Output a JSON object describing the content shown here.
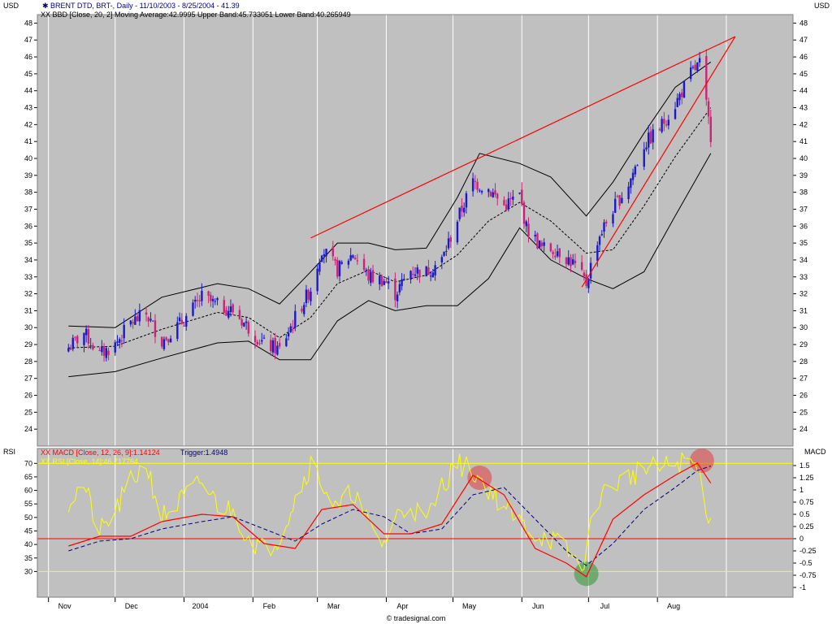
{
  "header": {
    "left_unit": "USD",
    "right_unit": "USD",
    "series_label": "BRENT DTD, BRT-, Daily - 11/10/2003 - 8/25/2004 - 41.39",
    "bb_label": "XX BBD [Close, 20, 2] Moving Average:42.9995 Upper Band:45.733051 Lower Band:40.265949"
  },
  "lower_header": {
    "left_unit": "RSI",
    "right_unit": "MACD",
    "macd_label": "XX MACD [Close, 12, 26, 9]:1.14124",
    "trigger_label": "Trigger:1.4948",
    "rsi_label": "XX RSI [Close, 14]:46.717764"
  },
  "footer": {
    "watermark": "© tradesignal.com"
  },
  "colors": {
    "panel_bg": "#c0c0c0",
    "candle_up": "#1a1acc",
    "candle_down": "#cc2277",
    "trendline": "#ff0000",
    "macd": "#ff0000",
    "trigger": "#00007a",
    "rsi": "#ffff00",
    "band": "#000000"
  },
  "chart_data": [
    {
      "type": "candlestick",
      "title": "BRENT DTD, BRT-, Daily - 11/10/2003 - 8/25/2004 - 41.39",
      "ylabel": "USD",
      "ylim": [
        23,
        48.5
      ],
      "yticks": [
        24,
        25,
        26,
        27,
        28,
        29,
        30,
        31,
        32,
        33,
        34,
        35,
        36,
        37,
        38,
        39,
        40,
        41,
        42,
        43,
        44,
        45,
        46,
        47,
        48
      ],
      "x_labels": [
        "Nov",
        "Dec",
        "2004",
        "Feb",
        "Mar",
        "Apr",
        "May",
        "Jun",
        "Jul",
        "Aug"
      ],
      "x_domain": [
        "2003-10-27",
        "2004-10-01"
      ],
      "month_starts": [
        "2003-11-01",
        "2003-12-01",
        "2004-01-01",
        "2004-02-01",
        "2004-03-01",
        "2004-04-01",
        "2004-05-01",
        "2004-06-01",
        "2004-07-01",
        "2004-08-01",
        "2004-09-01"
      ],
      "close_path": [
        [
          "2003-11-10",
          28.8
        ],
        [
          "2003-11-17",
          29.7
        ],
        [
          "2003-11-24",
          28.4
        ],
        [
          "2003-12-01",
          29.0
        ],
        [
          "2003-12-08",
          30.3
        ],
        [
          "2003-12-15",
          30.8
        ],
        [
          "2003-12-22",
          29.2
        ],
        [
          "2004-01-02",
          30.6
        ],
        [
          "2004-01-09",
          31.8
        ],
        [
          "2004-01-16",
          31.3
        ],
        [
          "2004-01-23",
          31.0
        ],
        [
          "2004-01-30",
          30.0
        ],
        [
          "2004-02-06",
          29.0
        ],
        [
          "2004-02-13",
          28.7
        ],
        [
          "2004-02-20",
          30.6
        ],
        [
          "2004-02-27",
          32.3
        ],
        [
          "2004-03-03",
          34.7
        ],
        [
          "2004-03-10",
          33.4
        ],
        [
          "2004-03-17",
          34.4
        ],
        [
          "2004-03-24",
          33.0
        ],
        [
          "2004-03-31",
          32.8
        ],
        [
          "2004-04-05",
          32.0
        ],
        [
          "2004-04-12",
          33.4
        ],
        [
          "2004-04-19",
          33.3
        ],
        [
          "2004-04-26",
          34.0
        ],
        [
          "2004-05-03",
          36.4
        ],
        [
          "2004-05-10",
          38.6
        ],
        [
          "2004-05-17",
          38.2
        ],
        [
          "2004-05-24",
          37.2
        ],
        [
          "2004-05-31",
          37.8
        ],
        [
          "2004-06-03",
          35.9
        ],
        [
          "2004-06-10",
          34.7
        ],
        [
          "2004-06-17",
          34.6
        ],
        [
          "2004-06-24",
          33.8
        ],
        [
          "2004-06-30",
          32.6
        ],
        [
          "2004-07-05",
          35.2
        ],
        [
          "2004-07-12",
          37.0
        ],
        [
          "2004-07-19",
          38.5
        ],
        [
          "2004-07-26",
          40.8
        ],
        [
          "2004-08-02",
          41.8
        ],
        [
          "2004-08-09",
          43.2
        ],
        [
          "2004-08-16",
          45.0
        ],
        [
          "2004-08-20",
          45.6
        ],
        [
          "2004-08-25",
          41.4
        ]
      ],
      "moving_average": [
        [
          "2003-11-10",
          28.8
        ],
        [
          "2003-12-01",
          28.9
        ],
        [
          "2003-12-22",
          29.9
        ],
        [
          "2004-01-16",
          30.9
        ],
        [
          "2004-01-30",
          30.6
        ],
        [
          "2004-02-13",
          29.4
        ],
        [
          "2004-02-27",
          30.6
        ],
        [
          "2004-03-10",
          32.6
        ],
        [
          "2004-03-24",
          33.4
        ],
        [
          "2004-04-05",
          32.7
        ],
        [
          "2004-04-19",
          33.1
        ],
        [
          "2004-05-03",
          34.3
        ],
        [
          "2004-05-17",
          36.3
        ],
        [
          "2004-05-31",
          37.4
        ],
        [
          "2004-06-14",
          36.3
        ],
        [
          "2004-06-30",
          34.4
        ],
        [
          "2004-07-12",
          34.6
        ],
        [
          "2004-07-26",
          37.2
        ],
        [
          "2004-08-09",
          40.1
        ],
        [
          "2004-08-25",
          43.0
        ]
      ],
      "upper_band": [
        [
          "2003-11-10",
          30.1
        ],
        [
          "2003-12-01",
          30.0
        ],
        [
          "2003-12-22",
          31.8
        ],
        [
          "2004-01-16",
          32.6
        ],
        [
          "2004-01-30",
          32.3
        ],
        [
          "2004-02-13",
          31.4
        ],
        [
          "2004-02-27",
          33.3
        ],
        [
          "2004-03-10",
          35.0
        ],
        [
          "2004-03-24",
          35.0
        ],
        [
          "2004-04-05",
          34.6
        ],
        [
          "2004-04-19",
          34.7
        ],
        [
          "2004-05-03",
          37.7
        ],
        [
          "2004-05-13",
          40.3
        ],
        [
          "2004-05-31",
          39.7
        ],
        [
          "2004-06-14",
          38.9
        ],
        [
          "2004-06-30",
          36.6
        ],
        [
          "2004-07-12",
          38.6
        ],
        [
          "2004-07-26",
          41.5
        ],
        [
          "2004-08-09",
          44.2
        ],
        [
          "2004-08-25",
          45.7
        ]
      ],
      "lower_band": [
        [
          "2003-11-10",
          27.1
        ],
        [
          "2003-12-01",
          27.4
        ],
        [
          "2003-12-22",
          28.2
        ],
        [
          "2004-01-16",
          29.1
        ],
        [
          "2004-01-30",
          29.2
        ],
        [
          "2004-02-13",
          28.1
        ],
        [
          "2004-02-27",
          28.1
        ],
        [
          "2004-03-10",
          30.4
        ],
        [
          "2004-03-24",
          31.6
        ],
        [
          "2004-04-05",
          31.0
        ],
        [
          "2004-04-19",
          31.3
        ],
        [
          "2004-05-03",
          31.3
        ],
        [
          "2004-05-17",
          32.9
        ],
        [
          "2004-05-31",
          35.9
        ],
        [
          "2004-06-14",
          34.0
        ],
        [
          "2004-06-30",
          32.9
        ],
        [
          "2004-07-12",
          32.3
        ],
        [
          "2004-07-26",
          33.3
        ],
        [
          "2004-08-09",
          36.6
        ],
        [
          "2004-08-25",
          40.3
        ]
      ],
      "trendlines": [
        {
          "from": [
            "2004-02-27",
            35.3
          ],
          "to": [
            "2004-09-05",
            47.2
          ]
        },
        {
          "from": [
            "2004-06-28",
            32.4
          ],
          "to": [
            "2004-09-05",
            47.2
          ]
        }
      ]
    },
    {
      "type": "line",
      "left_label": "RSI",
      "right_label": "MACD",
      "rsi_yticks": [
        30,
        35,
        40,
        45,
        50,
        55,
        60,
        65,
        70
      ],
      "rsi_ylim": [
        20.5,
        75.5
      ],
      "macd_yticks": [
        -1,
        -0.75,
        -0.5,
        -0.25,
        0,
        0.25,
        0.5,
        0.75,
        1,
        1.25,
        1.5
      ],
      "macd_ylim": [
        -1.2,
        1.85
      ],
      "rsi_levels": [
        30,
        70
      ],
      "macd_zero": 0,
      "rsi": [
        [
          "2003-11-10",
          56
        ],
        [
          "2003-11-17",
          62
        ],
        [
          "2003-11-24",
          44
        ],
        [
          "2003-12-01",
          52
        ],
        [
          "2003-12-08",
          63
        ],
        [
          "2003-12-15",
          70
        ],
        [
          "2003-12-22",
          50
        ],
        [
          "2004-01-02",
          58
        ],
        [
          "2004-01-09",
          63
        ],
        [
          "2004-01-16",
          55
        ],
        [
          "2004-01-23",
          52
        ],
        [
          "2004-01-30",
          43
        ],
        [
          "2004-02-06",
          38
        ],
        [
          "2004-02-13",
          43
        ],
        [
          "2004-02-20",
          57
        ],
        [
          "2004-02-27",
          70
        ],
        [
          "2004-03-03",
          63
        ],
        [
          "2004-03-10",
          52
        ],
        [
          "2004-03-17",
          60
        ],
        [
          "2004-03-24",
          47
        ],
        [
          "2004-03-31",
          40
        ],
        [
          "2004-04-05",
          50
        ],
        [
          "2004-04-12",
          55
        ],
        [
          "2004-04-19",
          48
        ],
        [
          "2004-04-26",
          62
        ],
        [
          "2004-05-03",
          70
        ],
        [
          "2004-05-10",
          67
        ],
        [
          "2004-05-17",
          61
        ],
        [
          "2004-05-24",
          54
        ],
        [
          "2004-05-31",
          48
        ],
        [
          "2004-06-07",
          44
        ],
        [
          "2004-06-14",
          42
        ],
        [
          "2004-06-21",
          38
        ],
        [
          "2004-06-28",
          31
        ],
        [
          "2004-07-05",
          57
        ],
        [
          "2004-07-12",
          62
        ],
        [
          "2004-07-19",
          65
        ],
        [
          "2004-07-26",
          68
        ],
        [
          "2004-08-02",
          68
        ],
        [
          "2004-08-09",
          70
        ],
        [
          "2004-08-16",
          71
        ],
        [
          "2004-08-20",
          66
        ],
        [
          "2004-08-25",
          47
        ]
      ],
      "macd": [
        [
          "2003-11-10",
          -0.15
        ],
        [
          "2003-11-24",
          0.05
        ],
        [
          "2003-12-08",
          0.05
        ],
        [
          "2003-12-22",
          0.35
        ],
        [
          "2004-01-09",
          0.5
        ],
        [
          "2004-01-23",
          0.45
        ],
        [
          "2004-02-06",
          -0.1
        ],
        [
          "2004-02-20",
          -0.2
        ],
        [
          "2004-03-03",
          0.6
        ],
        [
          "2004-03-17",
          0.7
        ],
        [
          "2004-03-31",
          0.1
        ],
        [
          "2004-04-12",
          0.1
        ],
        [
          "2004-04-26",
          0.3
        ],
        [
          "2004-05-10",
          1.3
        ],
        [
          "2004-05-24",
          0.9
        ],
        [
          "2004-06-07",
          -0.2
        ],
        [
          "2004-06-21",
          -0.5
        ],
        [
          "2004-06-30",
          -0.78
        ],
        [
          "2004-07-12",
          0.4
        ],
        [
          "2004-07-26",
          0.9
        ],
        [
          "2004-08-09",
          1.3
        ],
        [
          "2004-08-19",
          1.55
        ],
        [
          "2004-08-25",
          1.14
        ]
      ],
      "trigger": [
        [
          "2003-11-10",
          -0.25
        ],
        [
          "2003-11-24",
          -0.05
        ],
        [
          "2003-12-08",
          0.0
        ],
        [
          "2003-12-22",
          0.2
        ],
        [
          "2004-01-09",
          0.35
        ],
        [
          "2004-01-23",
          0.45
        ],
        [
          "2004-02-06",
          0.2
        ],
        [
          "2004-02-20",
          -0.05
        ],
        [
          "2004-03-03",
          0.3
        ],
        [
          "2004-03-17",
          0.6
        ],
        [
          "2004-03-31",
          0.45
        ],
        [
          "2004-04-12",
          0.1
        ],
        [
          "2004-04-26",
          0.2
        ],
        [
          "2004-05-10",
          0.9
        ],
        [
          "2004-05-24",
          1.05
        ],
        [
          "2004-06-07",
          0.4
        ],
        [
          "2004-06-21",
          -0.25
        ],
        [
          "2004-06-30",
          -0.55
        ],
        [
          "2004-07-12",
          -0.1
        ],
        [
          "2004-07-26",
          0.6
        ],
        [
          "2004-08-09",
          1.05
        ],
        [
          "2004-08-19",
          1.4
        ],
        [
          "2004-08-25",
          1.49
        ]
      ],
      "highlights": [
        {
          "date": "2004-05-13",
          "macd": 1.25,
          "color": "#e04848",
          "kind": "sell"
        },
        {
          "date": "2004-06-30",
          "macd": -0.72,
          "color": "#3a9a3a",
          "kind": "buy"
        },
        {
          "date": "2004-08-21",
          "macd": 1.6,
          "color": "#e04848",
          "kind": "sell"
        }
      ]
    }
  ]
}
